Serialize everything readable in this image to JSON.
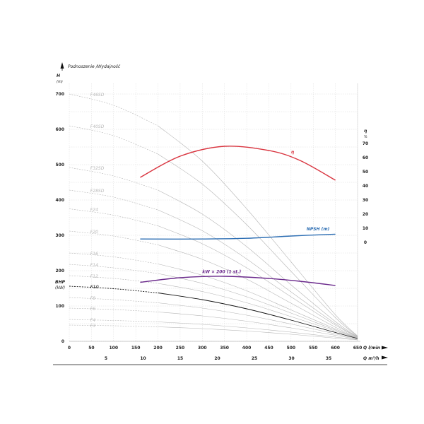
{
  "chart_data": {
    "type": "line",
    "title": "Podnoszenie /Wydajność",
    "left_axis": {
      "label": "H",
      "unit": "(m)",
      "ylim": [
        0,
        700
      ],
      "ticks": [
        "0",
        "100",
        "200",
        "300",
        "400",
        "500",
        "600",
        "700"
      ]
    },
    "bhp_axis": {
      "label": "BHP",
      "unit": "(kW)"
    },
    "right_axis": {
      "label": "η",
      "unit": "%",
      "ylim": [
        0,
        70
      ],
      "ticks": [
        "0",
        "10",
        "20",
        "30",
        "40",
        "50",
        "60",
        "70"
      ]
    },
    "x_axis_lmin": {
      "label": "Q l/min",
      "xlim": [
        0,
        650
      ],
      "ticks": [
        "0",
        "50",
        "100",
        "150",
        "200",
        "250",
        "300",
        "350",
        "400",
        "450",
        "500",
        "550",
        "600",
        "650"
      ]
    },
    "x_axis_m3h": {
      "label": "Q m³/h",
      "ticks": [
        "5",
        "10",
        "15",
        "20",
        "25",
        "30",
        "35"
      ]
    },
    "head_curves": [
      {
        "name": "F46SD",
        "x": [
          0,
          100,
          200,
          300,
          400,
          500,
          600,
          650
        ],
        "y": [
          700,
          668,
          610,
          510,
          375,
          225,
          75,
          15
        ]
      },
      {
        "name": "F40SD",
        "x": [
          0,
          100,
          200,
          300,
          400,
          500,
          600,
          650
        ],
        "y": [
          610,
          582,
          530,
          445,
          330,
          198,
          67,
          14
        ]
      },
      {
        "name": "F32SD",
        "x": [
          0,
          100,
          200,
          300,
          400,
          500,
          600,
          650
        ],
        "y": [
          492,
          468,
          428,
          360,
          268,
          160,
          56,
          13
        ]
      },
      {
        "name": "F28SD",
        "x": [
          0,
          100,
          200,
          300,
          400,
          500,
          600,
          650
        ],
        "y": [
          428,
          408,
          372,
          313,
          233,
          140,
          50,
          12
        ]
      },
      {
        "name": "F24",
        "x": [
          0,
          100,
          200,
          300,
          400,
          500,
          600,
          650
        ],
        "y": [
          375,
          357,
          327,
          276,
          208,
          126,
          46,
          12
        ]
      },
      {
        "name": "F20",
        "x": [
          0,
          100,
          200,
          300,
          400,
          500,
          600,
          650
        ],
        "y": [
          312,
          298,
          273,
          232,
          176,
          108,
          40,
          11
        ]
      },
      {
        "name": "F16",
        "x": [
          0,
          100,
          200,
          300,
          400,
          500,
          600,
          650
        ],
        "y": [
          250,
          239,
          219,
          187,
          143,
          89,
          35,
          10
        ]
      },
      {
        "name": "F14",
        "x": [
          0,
          100,
          200,
          300,
          400,
          500,
          600,
          650
        ],
        "y": [
          218,
          208,
          192,
          164,
          126,
          80,
          32,
          10
        ]
      },
      {
        "name": "F12",
        "x": [
          0,
          100,
          200,
          300,
          400,
          500,
          600,
          650
        ],
        "y": [
          186,
          178,
          164,
          141,
          109,
          70,
          29,
          9
        ]
      },
      {
        "name": "F10",
        "x": [
          0,
          100,
          200,
          300,
          400,
          500,
          600,
          650
        ],
        "y": [
          156,
          149,
          137,
          118,
          92,
          60,
          25,
          8
        ]
      },
      {
        "name": "F8",
        "x": [
          0,
          100,
          200,
          300,
          400,
          500,
          600,
          650
        ],
        "y": [
          124,
          118,
          109,
          94,
          74,
          49,
          21,
          7
        ]
      },
      {
        "name": "F6",
        "x": [
          0,
          100,
          200,
          300,
          400,
          500,
          600,
          650
        ],
        "y": [
          94,
          90,
          83,
          72,
          57,
          38,
          17,
          6
        ]
      },
      {
        "name": "F4",
        "x": [
          0,
          100,
          200,
          300,
          400,
          500,
          600,
          650
        ],
        "y": [
          62,
          59,
          55,
          48,
          38,
          26,
          12,
          5
        ]
      },
      {
        "name": "F3",
        "x": [
          0,
          100,
          200,
          300,
          400,
          500,
          600,
          650
        ],
        "y": [
          46,
          44,
          41,
          36,
          29,
          20,
          9,
          4
        ]
      }
    ],
    "highlighted_curve": "F10",
    "efficiency": {
      "name": "η",
      "color": "#d9343f",
      "x": [
        160,
        250,
        350,
        450,
        520,
        600
      ],
      "y": [
        46,
        61,
        68,
        65,
        58,
        44
      ]
    },
    "npsh": {
      "name": "NPSH (m)",
      "color": "#2e6fb4",
      "x": [
        160,
        300,
        400,
        500,
        600
      ],
      "y": [
        2.4,
        2.4,
        2.9,
        4.5,
        5.8
      ]
    },
    "power": {
      "name": "kW × 200 (1 st.)",
      "color": "#6b2a8c",
      "x": [
        160,
        250,
        350,
        450,
        520,
        600
      ],
      "y": [
        167,
        180,
        184,
        178,
        170,
        158
      ]
    },
    "grid": true
  }
}
